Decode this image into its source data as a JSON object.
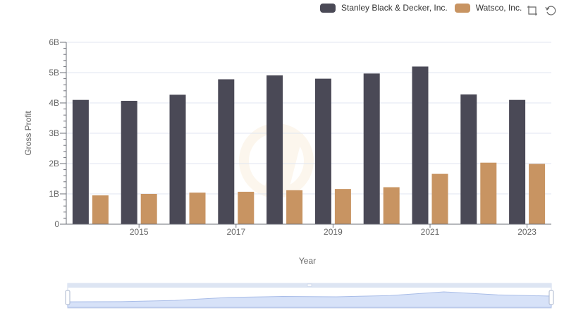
{
  "toolbox": {
    "zoom_icon": "zoom-icon",
    "restore_icon": "restore-icon"
  },
  "chart_data": {
    "type": "bar",
    "title": "",
    "xlabel": "Year",
    "ylabel": "Gross Profit",
    "categories": [
      "2014",
      "2015",
      "2016",
      "2017",
      "2018",
      "2019",
      "2020",
      "2021",
      "2022",
      "2023"
    ],
    "x_tick_labels": [
      "2015",
      "2017",
      "2019",
      "2021",
      "2023"
    ],
    "y_ticks": [
      "0",
      "1B",
      "2B",
      "3B",
      "4B",
      "5B",
      "6B"
    ],
    "ylim": [
      0,
      6000000000
    ],
    "grid": true,
    "legend_position": "top-right",
    "has_datazoom_slider": true,
    "series": [
      {
        "name": "Stanley Black & Decker, Inc.",
        "color": "#4a4956",
        "values": [
          4100000000,
          4070000000,
          4270000000,
          4780000000,
          4910000000,
          4800000000,
          4970000000,
          5200000000,
          4280000000,
          4100000000
        ]
      },
      {
        "name": "Watsco, Inc.",
        "color": "#c89462",
        "values": [
          950000000,
          1000000000,
          1040000000,
          1070000000,
          1120000000,
          1160000000,
          1220000000,
          1660000000,
          2030000000,
          1990000000
        ]
      }
    ]
  }
}
